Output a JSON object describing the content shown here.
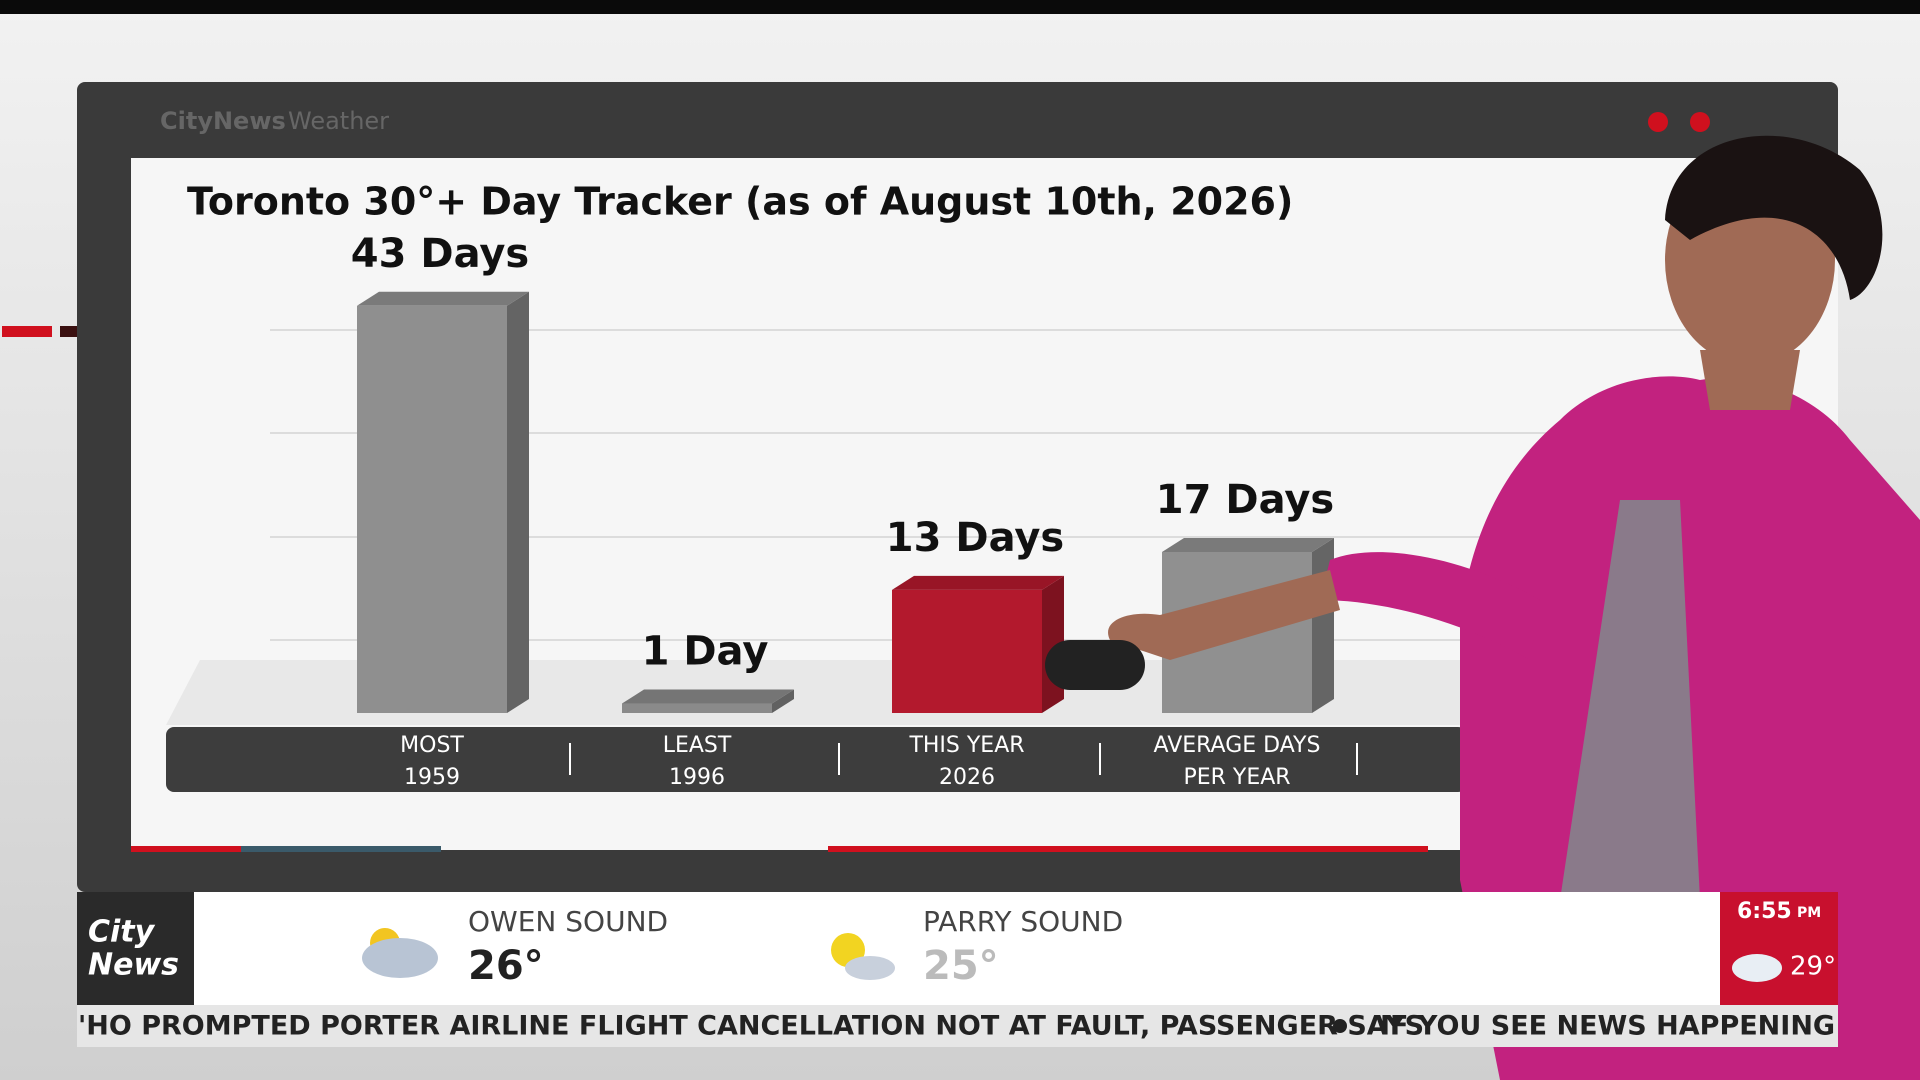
{
  "chart_data": {
    "type": "bar3d",
    "title": "Toronto 30°+ Day Tracker (as of August 10th, 2026)",
    "categories": [
      [
        "MOST",
        "1959"
      ],
      [
        "LEAST",
        "1996"
      ],
      [
        "THIS YEAR",
        "2026"
      ],
      [
        "AVERAGE DAYS",
        "PER YEAR"
      ]
    ],
    "values": [
      43,
      1,
      13,
      17
    ],
    "value_labels": [
      "43 Days",
      "1 Day",
      "13 Days",
      "17 Days"
    ],
    "colors": [
      "#8f8f8f",
      "#8a8a8a",
      "#b3192d",
      "#909090"
    ]
  },
  "header": {
    "brand": "CityNews",
    "section": "Weather"
  },
  "weather": [
    {
      "city": "OWEN SOUND",
      "temp": "26°"
    },
    {
      "city": "PARRY SOUND",
      "temp": "25°"
    }
  ],
  "logo": [
    "City",
    "News"
  ],
  "clock": {
    "time": "6:55",
    "ampm": "PM",
    "temp": "29°"
  },
  "ticker": [
    "'HO PROMPTED PORTER AIRLINE FLIGHT CANCELLATION NOT AT FAULT, PASSENGER SAYS",
    "IF YOU SEE NEWS HAPPENING OR"
  ]
}
